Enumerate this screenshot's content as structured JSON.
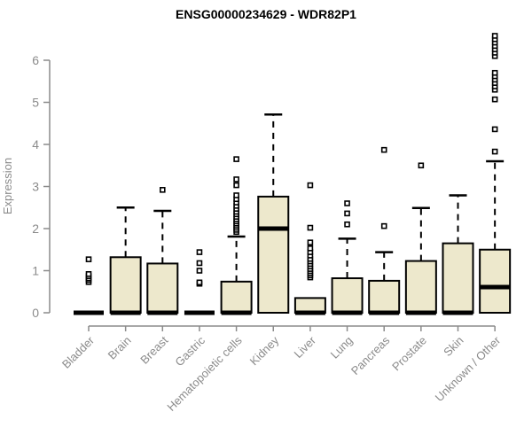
{
  "chart_data": {
    "type": "boxplot",
    "title": "ENSG00000234629 - WDR82P1",
    "xlabel": "",
    "ylabel": "Expression",
    "ylim": [
      -0.3,
      6.6
    ],
    "yticks": [
      0,
      1,
      2,
      3,
      4,
      5,
      6
    ],
    "grid": false,
    "legend": false,
    "colors": {
      "box_fill": "#EDE8CC",
      "box_stroke": "#000000",
      "median": "#000000",
      "whisker": "#000000",
      "outlier_stroke": "#000000",
      "outlier_fill": "#FFFFFF",
      "axis": "#8B8B8B",
      "tick_label": "#8B8B8B",
      "title": "#000000",
      "background": "#FFFFFF"
    },
    "categories": [
      "Bladder",
      "Brain",
      "Breast",
      "Gastric",
      "Hematopoietic cells",
      "Kidney",
      "Liver",
      "Lung",
      "Pancreas",
      "Prostate",
      "Skin",
      "Unknown / Other"
    ],
    "boxes": [
      {
        "label": "Bladder",
        "q1": 0,
        "median": 0,
        "q3": 0,
        "whisker_low": 0,
        "whisker_high": 0,
        "outliers": [
          0.73,
          0.78,
          0.82,
          0.87,
          0.92,
          1.27
        ]
      },
      {
        "label": "Brain",
        "q1": 0,
        "median": 0,
        "q3": 1.32,
        "whisker_low": 0,
        "whisker_high": 2.5,
        "outliers": []
      },
      {
        "label": "Breast",
        "q1": 0,
        "median": 0,
        "q3": 1.17,
        "whisker_low": 0,
        "whisker_high": 2.42,
        "outliers": [
          2.92
        ]
      },
      {
        "label": "Gastric",
        "q1": 0,
        "median": 0,
        "q3": 0,
        "whisker_low": 0,
        "whisker_high": 0,
        "outliers": [
          0.69,
          0.72,
          1.0,
          1.18,
          1.44
        ]
      },
      {
        "label": "Hematopoietic cells",
        "q1": 0,
        "median": 0,
        "q3": 0.74,
        "whisker_low": 0,
        "whisker_high": 1.81,
        "outliers": [
          1.92,
          1.97,
          2.02,
          2.07,
          2.12,
          2.17,
          2.22,
          2.28,
          2.34,
          2.4,
          2.47,
          2.54,
          2.62,
          2.7,
          2.79,
          3.03,
          3.17,
          3.65
        ]
      },
      {
        "label": "Kidney",
        "q1": 0,
        "median": 2.0,
        "q3": 2.76,
        "whisker_low": 0,
        "whisker_high": 4.71,
        "outliers": []
      },
      {
        "label": "Liver",
        "q1": 0,
        "median": 0,
        "q3": 0.35,
        "whisker_low": 0,
        "whisker_high": 0.35,
        "outliers": [
          0.84,
          0.89,
          0.94,
          0.99,
          1.04,
          1.1,
          1.16,
          1.22,
          1.28,
          1.36,
          1.44,
          1.53,
          1.67,
          2.02,
          3.03
        ]
      },
      {
        "label": "Lung",
        "q1": 0,
        "median": 0,
        "q3": 0.82,
        "whisker_low": 0,
        "whisker_high": 1.76,
        "outliers": [
          2.1,
          2.36,
          2.6
        ]
      },
      {
        "label": "Pancreas",
        "q1": 0,
        "median": 0,
        "q3": 0.76,
        "whisker_low": 0,
        "whisker_high": 1.44,
        "outliers": [
          2.06,
          3.87
        ]
      },
      {
        "label": "Prostate",
        "q1": 0,
        "median": 0,
        "q3": 1.23,
        "whisker_low": 0,
        "whisker_high": 2.49,
        "outliers": [
          3.5
        ]
      },
      {
        "label": "Skin",
        "q1": 0,
        "median": 0,
        "q3": 1.65,
        "whisker_low": 0,
        "whisker_high": 2.79,
        "outliers": []
      },
      {
        "label": "Unknown / Other",
        "q1": 0,
        "median": 0.61,
        "q3": 1.5,
        "whisker_low": 0,
        "whisker_high": 3.6,
        "outliers": [
          3.83,
          4.36,
          5.07,
          5.3,
          5.38,
          5.46,
          5.54,
          5.62,
          5.7,
          6.1,
          6.18,
          6.26,
          6.34,
          6.42,
          6.5,
          6.58
        ]
      }
    ]
  }
}
